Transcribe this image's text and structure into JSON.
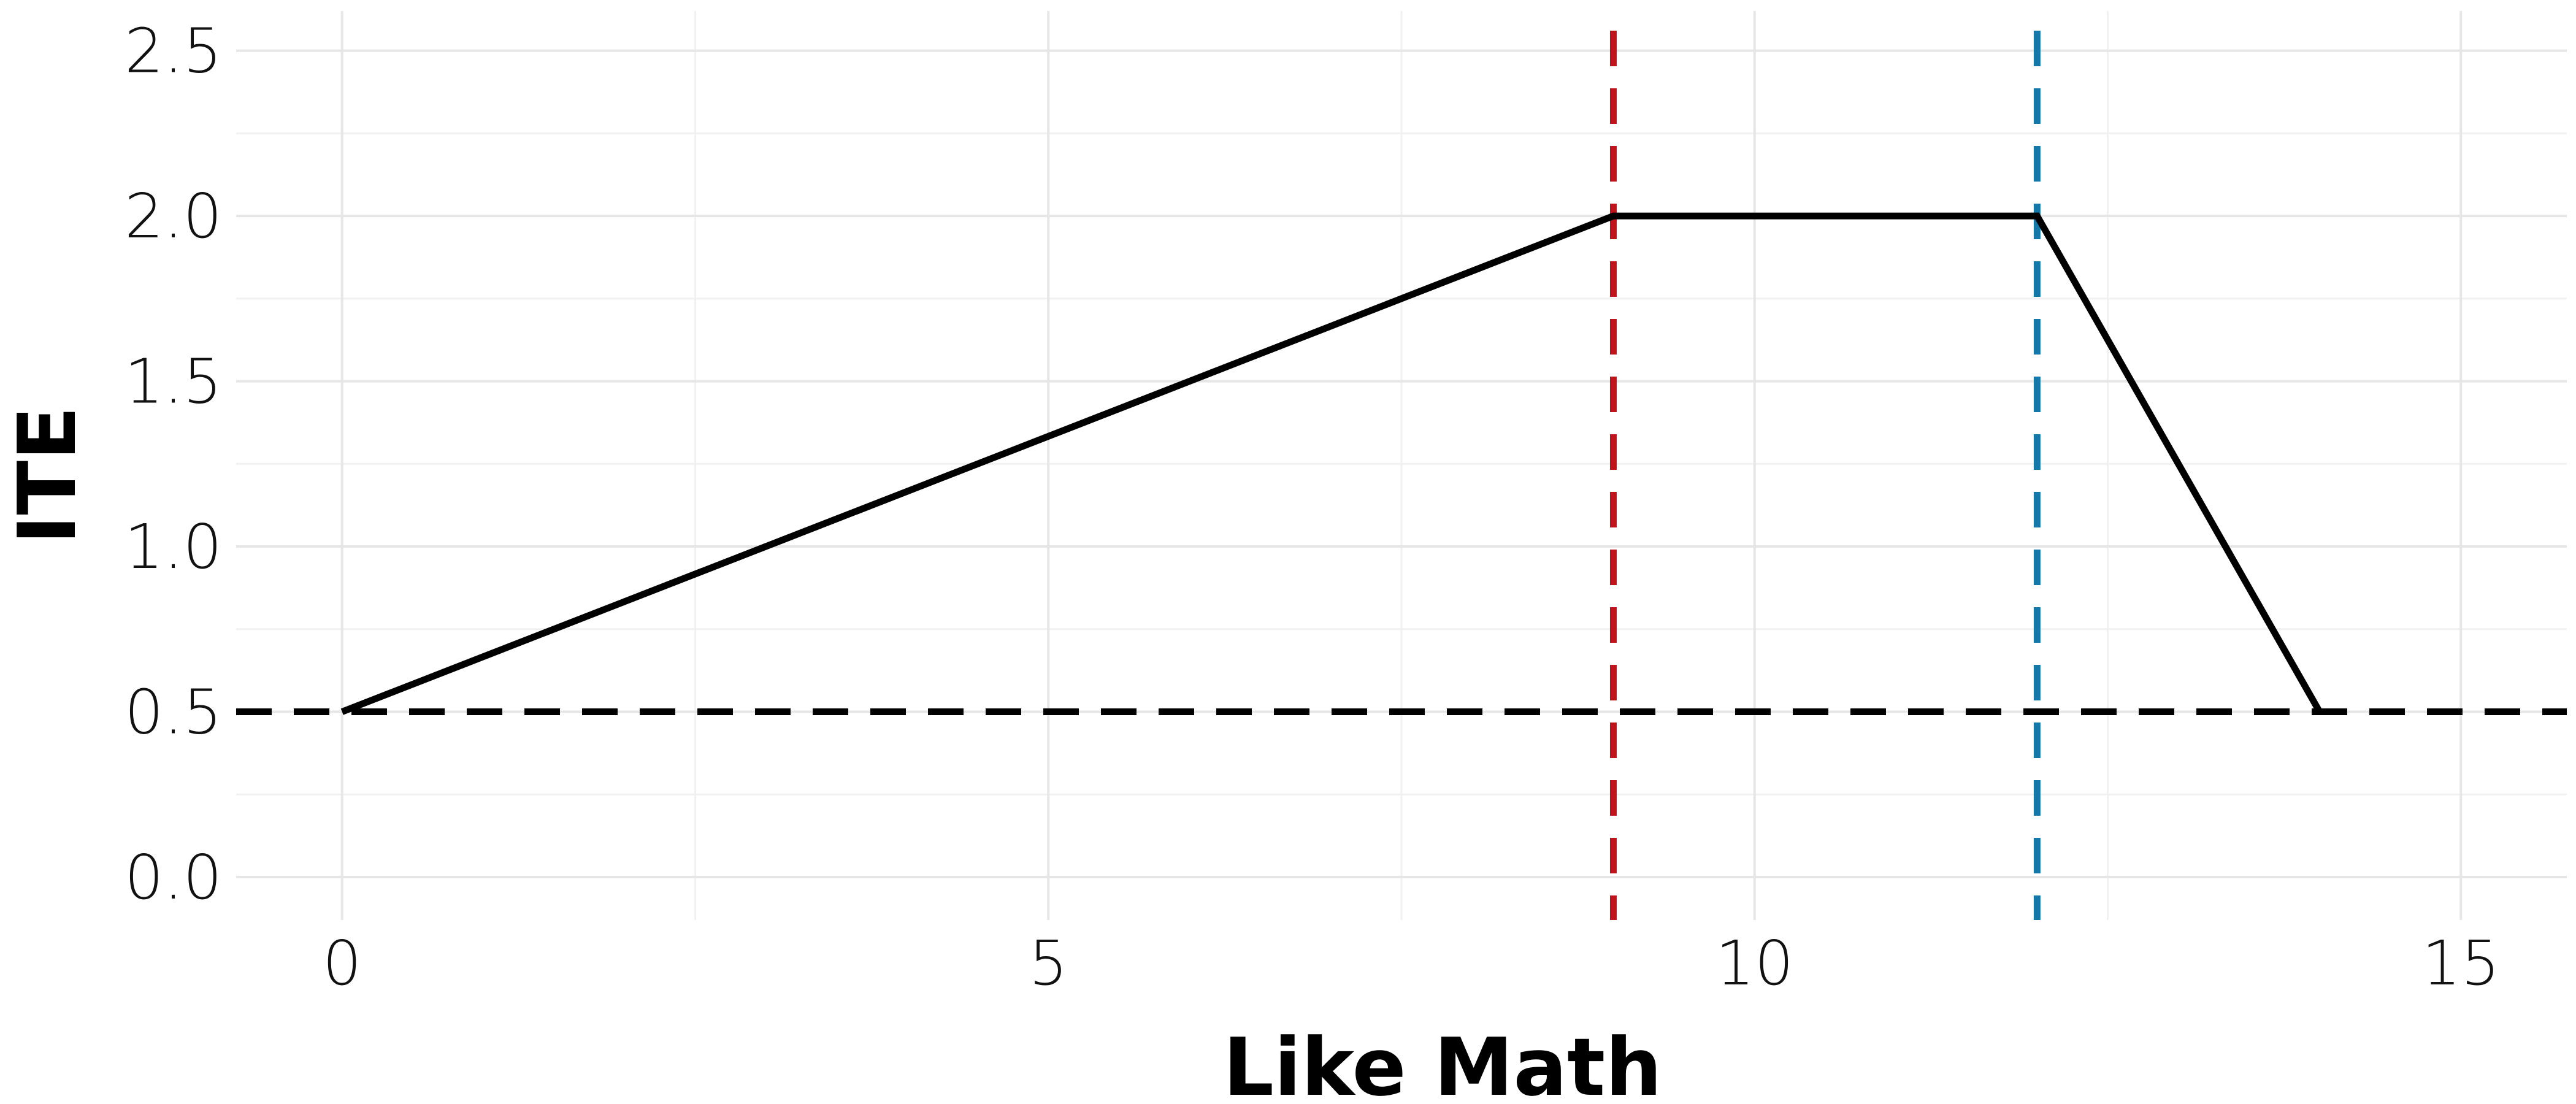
{
  "chart_data": {
    "type": "line",
    "xlabel": "Like Math",
    "ylabel": "ITE",
    "xlim": [
      -0.75,
      15.75
    ],
    "ylim": [
      -0.13,
      2.62
    ],
    "x_ticks": [
      0,
      5,
      10,
      15
    ],
    "x_tick_labels": [
      "0",
      "5",
      "10",
      "15"
    ],
    "x_minor_ticks": [
      2.5,
      7.5,
      12.5
    ],
    "y_ticks": [
      0,
      0.5,
      1.0,
      1.5,
      2.0,
      2.5
    ],
    "y_tick_labels": [
      "0.0",
      "0.5",
      "1.0",
      "1.5",
      "2.0",
      "2.5"
    ],
    "y_minor_ticks": [
      0.25,
      0.75,
      1.25,
      1.75,
      2.25
    ],
    "grid": true,
    "legend": "none",
    "series": [
      {
        "x": [
          0,
          9,
          12,
          14
        ],
        "y": [
          0.5,
          2.0,
          2.0,
          0.5
        ],
        "color": "#000000"
      }
    ],
    "reference_lines": [
      {
        "orientation": "horizontal",
        "value": 0.5,
        "color": "#000000",
        "style": "dashed"
      },
      {
        "orientation": "vertical",
        "value": 9,
        "color": "#c0141c",
        "style": "dashed"
      },
      {
        "orientation": "vertical",
        "value": 12,
        "color": "#1478a8",
        "style": "dashed"
      }
    ]
  }
}
